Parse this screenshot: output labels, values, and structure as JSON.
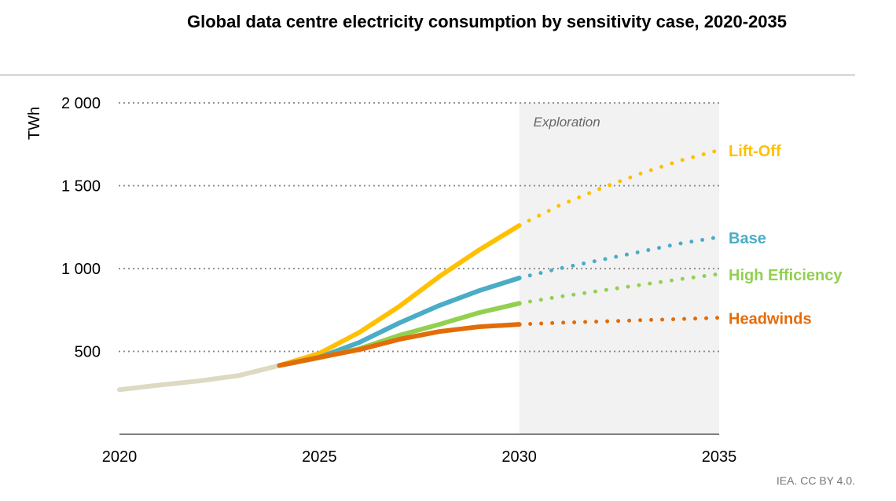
{
  "chart_data": {
    "type": "line",
    "title": "Global data centre electricity consumption by sensitivity case, 2020-2035",
    "ylabel": "TWh",
    "xlabel": "",
    "xlim": [
      2020,
      2035
    ],
    "ylim": [
      0,
      2000
    ],
    "xticks": [
      "2020",
      "2025",
      "2030",
      "2035"
    ],
    "yticks": [
      {
        "value": 500,
        "label": "500"
      },
      {
        "value": 1000,
        "label": "1 000"
      },
      {
        "value": 1500,
        "label": "1 500"
      },
      {
        "value": 2000,
        "label": "2 000"
      }
    ],
    "grid": "horizontal dotted",
    "shaded_region": {
      "from": 2030,
      "to": 2035,
      "label": "Exploration",
      "color": "#f2f2f2"
    },
    "historical": {
      "color": "#DDD9C3",
      "x": [
        2020,
        2021,
        2022,
        2023,
        2024
      ],
      "y": [
        269,
        297,
        322,
        355,
        415
      ]
    },
    "series": [
      {
        "name": "Lift-Off",
        "color": "#FFC000",
        "x": [
          2024,
          2025,
          2026,
          2027,
          2028,
          2029,
          2030,
          2031,
          2032,
          2033,
          2034,
          2035
        ],
        "y": [
          415,
          488,
          615,
          772,
          952,
          1113,
          1260,
          1380,
          1480,
          1570,
          1650,
          1715
        ]
      },
      {
        "name": "Base",
        "color": "#4BACC6",
        "x": [
          2024,
          2025,
          2026,
          2027,
          2028,
          2029,
          2030,
          2031,
          2032,
          2033,
          2034,
          2035
        ],
        "y": [
          415,
          464,
          554,
          672,
          777,
          867,
          943,
          1000,
          1050,
          1100,
          1150,
          1190
        ]
      },
      {
        "name": "High Efficiency",
        "color": "#92D050",
        "x": [
          2024,
          2025,
          2026,
          2027,
          2028,
          2029,
          2030,
          2031,
          2032,
          2033,
          2034,
          2035
        ],
        "y": [
          415,
          462,
          516,
          597,
          663,
          734,
          790,
          830,
          865,
          900,
          935,
          967
        ]
      },
      {
        "name": "Headwinds",
        "color": "#E36C09",
        "x": [
          2024,
          2025,
          2026,
          2027,
          2028,
          2029,
          2030,
          2031,
          2032,
          2033,
          2034,
          2035
        ],
        "y": [
          415,
          464,
          511,
          573,
          620,
          649,
          663,
          673,
          680,
          688,
          695,
          703
        ]
      }
    ],
    "projection_style": "solid to 2030, dotted 2030-2035"
  },
  "credit": "IEA. CC BY 4.0."
}
